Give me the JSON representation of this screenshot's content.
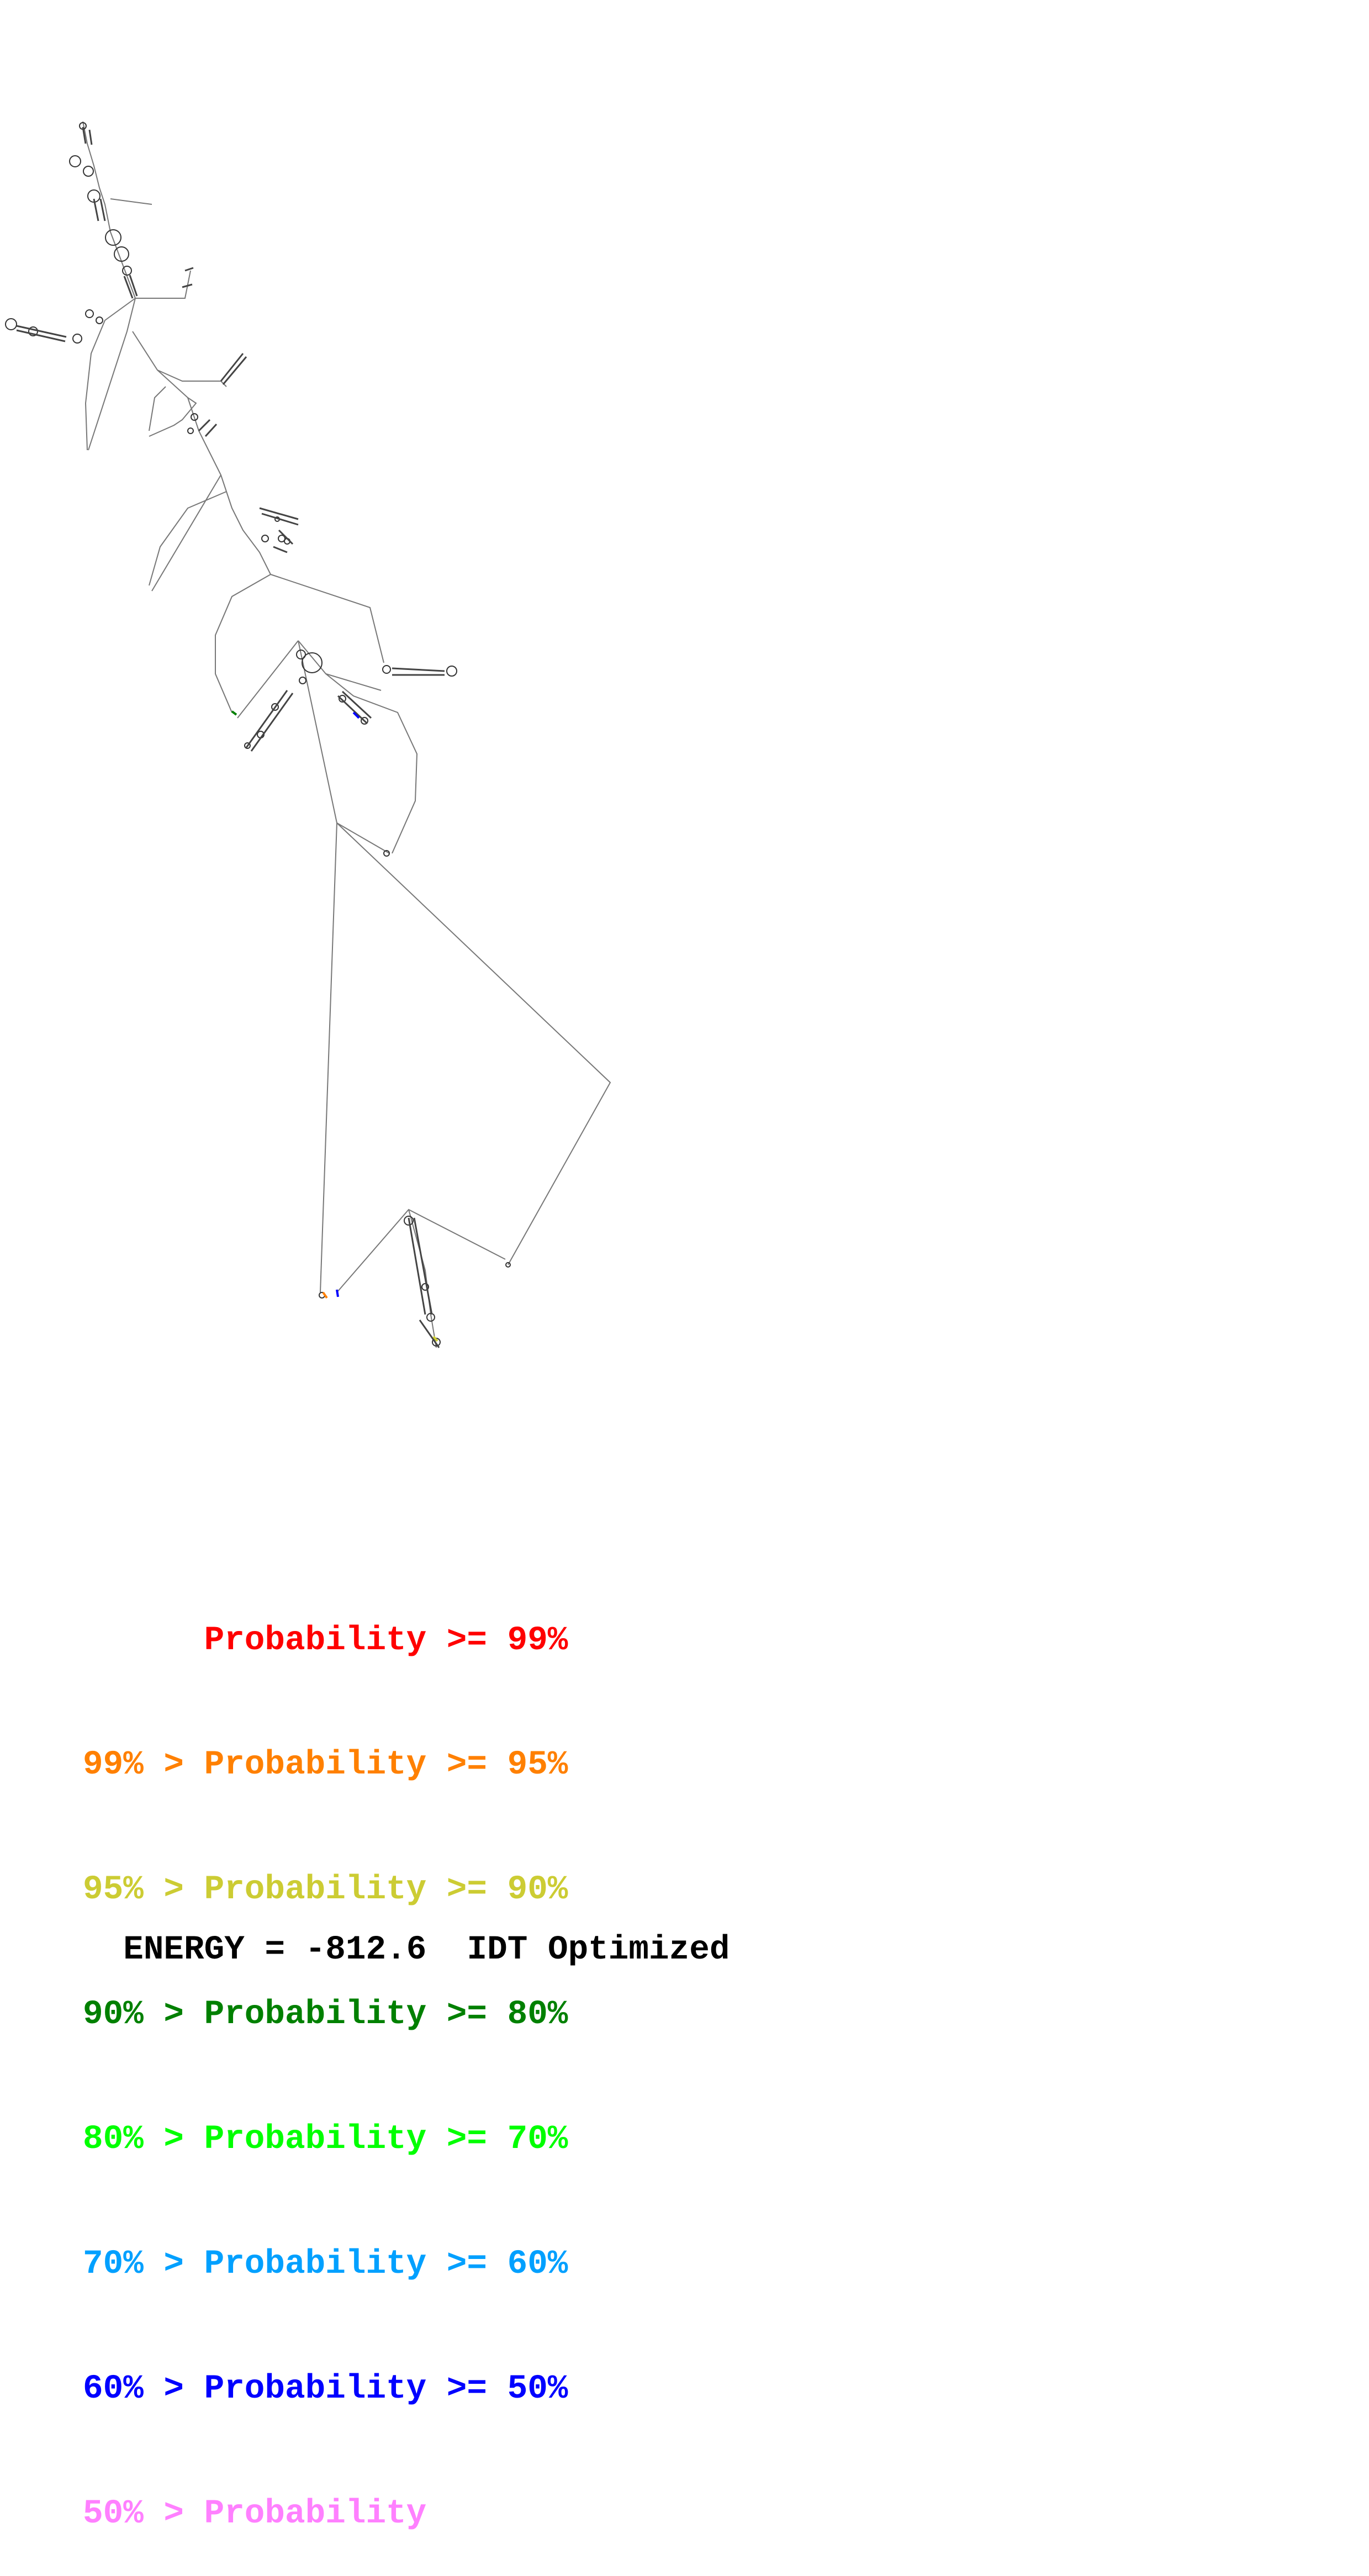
{
  "legend": {
    "rows": [
      {
        "prefix": "",
        "label": "Probability",
        "suffix": ">= 99%",
        "color": "#ff0000"
      },
      {
        "prefix": "99% >",
        "label": "Probability",
        "suffix": ">= 95%",
        "color": "#ff8000"
      },
      {
        "prefix": "95% >",
        "label": "Probability",
        "suffix": ">= 90%",
        "color": "#cccc33"
      },
      {
        "prefix": "90% >",
        "label": "Probability",
        "suffix": ">= 80%",
        "color": "#008000"
      },
      {
        "prefix": "80% >",
        "label": "Probability",
        "suffix": ">= 70%",
        "color": "#00ff00"
      },
      {
        "prefix": "70% >",
        "label": "Probability",
        "suffix": ">= 60%",
        "color": "#00a0ff"
      },
      {
        "prefix": "60% >",
        "label": "Probability",
        "suffix": ">= 50%",
        "color": "#0000ff"
      },
      {
        "prefix": "50% >",
        "label": "Probability",
        "suffix": "",
        "color": "#ff80ff"
      }
    ]
  },
  "footer": {
    "energy_label": "ENERGY =",
    "energy_value": "-812.6",
    "note": "IDT Optimized"
  },
  "diagram": {
    "line_color": "#555555",
    "base_color": "#333333"
  }
}
